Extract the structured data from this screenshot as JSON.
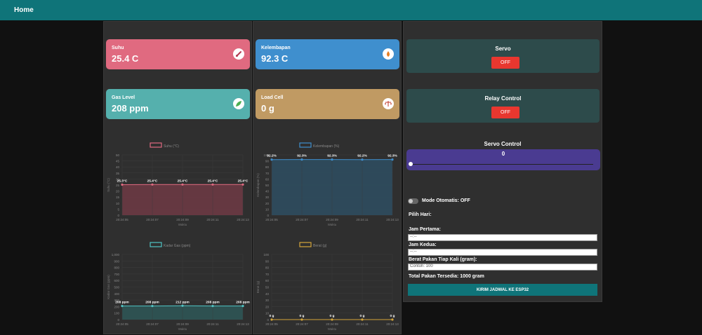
{
  "nav": {
    "home": "Home"
  },
  "cards": [
    {
      "id": "suhu",
      "label": "Suhu",
      "value": "25.4 C",
      "icon": "thermometer-icon",
      "color": "#e06a80"
    },
    {
      "id": "gas",
      "label": "Gas Level",
      "value": "208 ppm",
      "icon": "leaf-icon",
      "color": "#55b0ad"
    },
    {
      "id": "kelembapan",
      "label": "Kelembapan",
      "value": "92.3 C",
      "icon": "drop-fire-icon",
      "color": "#3f8fce"
    },
    {
      "id": "loadcell",
      "label": "Load Cell",
      "value": "0 g",
      "icon": "scale-icon",
      "color": "#c09a63"
    }
  ],
  "controls": {
    "servo_title": "Servo",
    "servo_btn": "OFF",
    "relay_title": "Relay Control",
    "relay_btn": "OFF",
    "servo_control_title": "Servo Control",
    "servo_value": "0",
    "mode_label": "Mode Otomatis: OFF",
    "pilih_hari": "Pilih Hari:",
    "jam_pertama_label": "Jam Pertama:",
    "jam_pertama_value": "--:--",
    "jam_kedua_label": "Jam Kedua:",
    "jam_kedua_value": "--:--",
    "berat_label": "Berat Pakan Tiap Kali (gram):",
    "berat_placeholder": "Contoh: 100",
    "total_label": "Total Pakan Tersedia: 1000 gram",
    "send_button": "KIRIM JADWAL KE ESP32"
  },
  "chart_data": [
    {
      "id": "suhu",
      "type": "area",
      "legend": "Suhu (°C)",
      "color": "#e06a80",
      "fill": "#6e3a44",
      "x": [
        "20:24:05",
        "20:24:07",
        "20:24:09",
        "20:24:11",
        "20:24:13"
      ],
      "values": [
        25.3,
        25.4,
        25.4,
        25.4,
        25.4
      ],
      "point_labels": [
        "25.3°C",
        "25.4°C",
        "25.4°C",
        "25.4°C",
        "25.4°C"
      ],
      "yticks": [
        0,
        5,
        10,
        15,
        20,
        25,
        30,
        35,
        40,
        45,
        50
      ],
      "ylim": [
        0,
        50
      ],
      "xlabel": "Waktu",
      "ylabel": "Suhu (°C)"
    },
    {
      "id": "kelembapan",
      "type": "area",
      "legend": "Kelembapan (%)",
      "color": "#3f8fce",
      "fill": "#2e4d61",
      "x": [
        "20:24:05",
        "20:24:07",
        "20:24:09",
        "20:24:11",
        "20:24:13"
      ],
      "values": [
        92.2,
        92.3,
        92.3,
        92.2,
        92.3
      ],
      "point_labels": [
        "92.2%",
        "92.3%",
        "92.3%",
        "92.2%",
        "92.3%"
      ],
      "yticks": [
        0,
        10,
        20,
        30,
        40,
        50,
        60,
        70,
        80,
        90,
        100
      ],
      "ylim": [
        0,
        100
      ],
      "xlabel": "Waktu",
      "ylabel": "Kelembapan (%)"
    },
    {
      "id": "gas",
      "type": "area",
      "legend": "Kadar Gas (ppm)",
      "color": "#4fc4c4",
      "fill": "#2e5757",
      "x": [
        "20:24:05",
        "20:24:07",
        "20:24:09",
        "20:24:11",
        "20:24:13"
      ],
      "values": [
        208,
        208,
        212,
        208,
        208
      ],
      "point_labels": [
        "208 ppm",
        "208 ppm",
        "212 ppm",
        "208 ppm",
        "208 ppm"
      ],
      "yticks": [
        0,
        100,
        200,
        300,
        400,
        500,
        600,
        700,
        800,
        900,
        1000
      ],
      "ytick_labels": [
        "0",
        "100",
        "200",
        "300",
        "400",
        "500",
        "600",
        "700",
        "800",
        "900",
        "1,000"
      ],
      "ylim": [
        0,
        1000
      ],
      "xlabel": "Waktu",
      "ylabel": "Kadar Gas (ppm)"
    },
    {
      "id": "berat",
      "type": "area",
      "legend": "Berat (g)",
      "color": "#d4a53a",
      "fill": "#4d4430",
      "x": [
        "20:24:05",
        "20:24:07",
        "20:24:09",
        "20:24:11",
        "20:24:13"
      ],
      "values": [
        0,
        0,
        0,
        0,
        0
      ],
      "point_labels": [
        "0 g",
        "0 g",
        "0 g",
        "0 g",
        "0 g"
      ],
      "yticks": [
        0,
        10,
        20,
        30,
        40,
        50,
        60,
        70,
        80,
        90,
        100
      ],
      "ylim": [
        0,
        100
      ],
      "xlabel": "Waktu",
      "ylabel": "Berat (g)"
    }
  ]
}
